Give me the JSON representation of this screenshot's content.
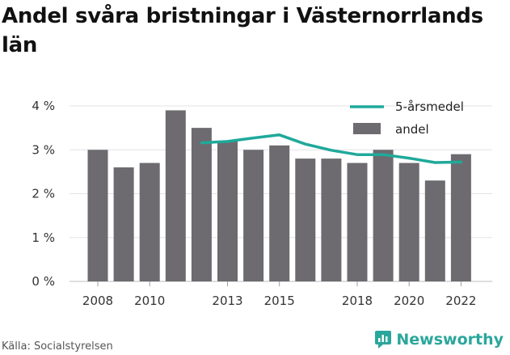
{
  "title": "Andel svåra bristningar i Västernorrlands län",
  "source": "Källa: Socialstyrelsen",
  "brand": {
    "name": "Newsworthy",
    "icon": "newsworthy-logo-icon",
    "color": "#2aa79b"
  },
  "chart_data": {
    "type": "bar",
    "x": [
      2008,
      2009,
      2010,
      2011,
      2012,
      2013,
      2014,
      2015,
      2016,
      2017,
      2018,
      2019,
      2020,
      2021,
      2022
    ],
    "x_tick_labels": [
      "2008",
      "2010",
      "2013",
      "2015",
      "2018",
      "2020",
      "2022"
    ],
    "y_tick_labels": [
      "0 %",
      "1 %",
      "2 %",
      "3 %",
      "4 %"
    ],
    "ylim": [
      0,
      4
    ],
    "grid": true,
    "legend_placement": "top-right",
    "series": [
      {
        "name": "andel",
        "kind": "bar",
        "color": "#6d6b70",
        "values": [
          3.0,
          2.6,
          2.7,
          3.9,
          3.5,
          3.2,
          3.0,
          3.1,
          2.8,
          2.8,
          2.7,
          3.0,
          2.7,
          2.3,
          2.9
        ]
      },
      {
        "name": "5-årsmedel",
        "kind": "line",
        "color": "#1fa99a",
        "values": [
          null,
          null,
          null,
          null,
          3.16,
          3.19,
          3.27,
          3.34,
          3.13,
          2.99,
          2.89,
          2.89,
          2.81,
          2.71,
          2.72
        ]
      }
    ]
  }
}
